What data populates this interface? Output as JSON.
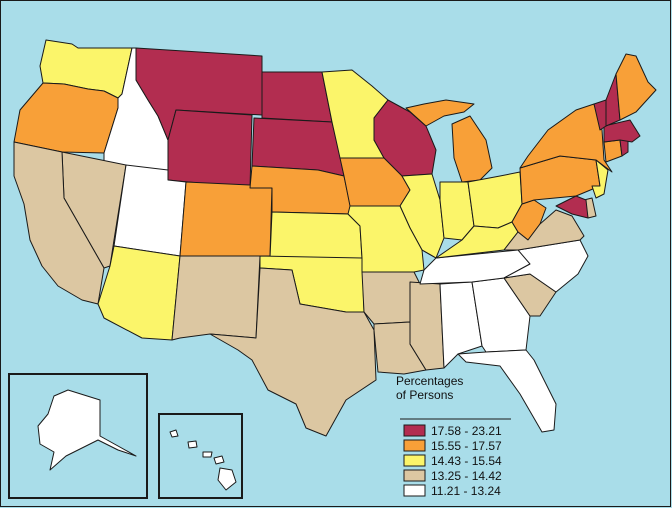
{
  "legend": {
    "title_line1": "Percentages",
    "title_line2": "of Persons",
    "classes": [
      {
        "label": "17.58 - 23.21",
        "color": "#b22d50"
      },
      {
        "label": "15.55 - 17.57",
        "color": "#f8a038"
      },
      {
        "label": "14.43 - 15.54",
        "color": "#fbf56a"
      },
      {
        "label": "13.25 - 14.42",
        "color": "#dcc7a2"
      },
      {
        "label": "11.21 - 13.24",
        "color": "#ffffff"
      }
    ]
  },
  "colors": {
    "water": "#a9dde9",
    "border": "#1a1a1a"
  },
  "states": {
    "WA": 2,
    "OR": 1,
    "ID": 4,
    "MT": 0,
    "WY": 0,
    "ND": 0,
    "SD": 0,
    "MN": 2,
    "WI": 0,
    "MI": 1,
    "NV": 3,
    "CA": 3,
    "UT": 4,
    "CO": 1,
    "NE": 1,
    "IA": 1,
    "IL": 2,
    "IN": 2,
    "OH": 2,
    "PA": 1,
    "NY": 1,
    "ME": 1,
    "VT": 0,
    "NH": 0,
    "MA": 0,
    "RI": 0,
    "CT": 1,
    "NJ": 2,
    "DE": 3,
    "MD": 0,
    "WV": 1,
    "VA": 3,
    "KY": 2,
    "TN": 4,
    "NC": 4,
    "SC": 3,
    "GA": 4,
    "AL": 4,
    "MS": 3,
    "AR": 3,
    "LA": 3,
    "FL": 4,
    "AZ": 2,
    "NM": 3,
    "TX": 3,
    "OK": 2,
    "KS": 2,
    "MO": 2,
    "AK": 4,
    "HI": 4
  }
}
